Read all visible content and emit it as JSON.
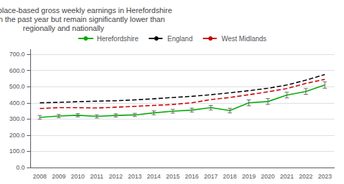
{
  "chart_data": {
    "type": "line",
    "title": "Median workplace-based gross weekly earnings in Herefordshire\nincreased in the past year but remain significantly lower than\nregionally and nationally",
    "categories": [
      "2008",
      "2009",
      "2010",
      "2011",
      "2012",
      "2013",
      "2014",
      "2015",
      "2016",
      "2017",
      "2018",
      "2019",
      "2020",
      "2021",
      "2022",
      "2023"
    ],
    "series": [
      {
        "name": "Herefordshire",
        "color": "#00aa00",
        "line_style": "solid",
        "values": [
          310,
          318,
          323,
          316,
          322,
          325,
          338,
          348,
          355,
          370,
          352,
          400,
          408,
          448,
          470,
          510
        ],
        "errors": [
          12,
          10,
          10,
          10,
          10,
          10,
          12,
          12,
          12,
          14,
          14,
          18,
          18,
          18,
          18,
          20
        ]
      },
      {
        "name": "England",
        "color": "#000000",
        "line_style": "dashed",
        "values": [
          400,
          403,
          407,
          410,
          413,
          418,
          425,
          433,
          440,
          450,
          462,
          475,
          490,
          510,
          540,
          575
        ]
      },
      {
        "name": "West Midlands",
        "color": "#cc0000",
        "line_style": "dashed",
        "values": [
          365,
          370,
          370,
          368,
          373,
          378,
          384,
          390,
          400,
          420,
          433,
          450,
          468,
          488,
          520,
          545
        ]
      }
    ],
    "ylim": [
      0,
      730
    ],
    "yticks": [
      {
        "value": 0,
        "label": "0.0"
      },
      {
        "value": 100,
        "label": "100.0"
      },
      {
        "value": 200,
        "label": "200.0"
      },
      {
        "value": 300,
        "label": "300.0"
      },
      {
        "value": 400,
        "label": "400.0"
      },
      {
        "value": 500,
        "label": "500.0"
      },
      {
        "value": 600,
        "label": "600.0"
      },
      {
        "value": 700,
        "label": "700.0"
      }
    ],
    "grid": true,
    "legend": "upper center"
  }
}
